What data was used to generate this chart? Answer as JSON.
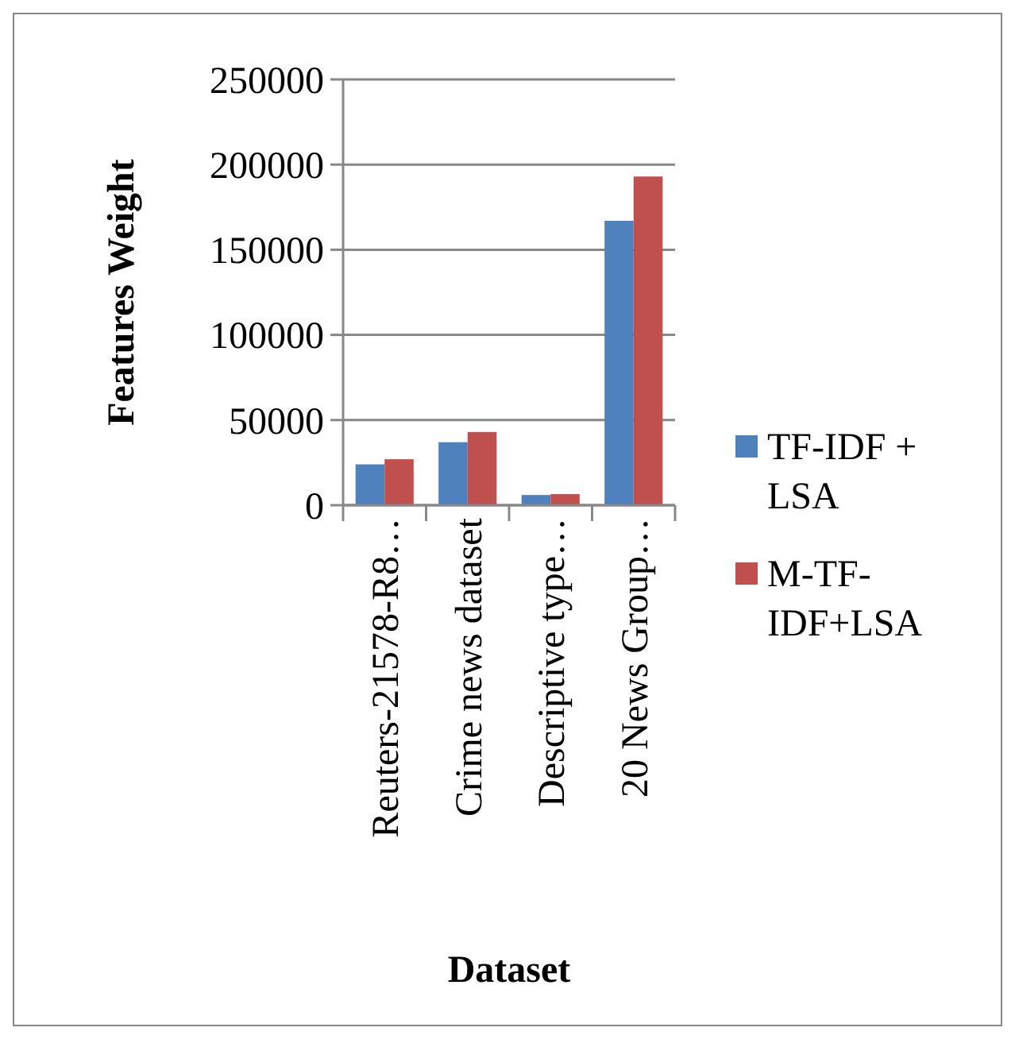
{
  "chart_data": {
    "type": "bar",
    "xlabel": "Dataset",
    "ylabel": "Features Weight",
    "categories": [
      "Reuters-21578-R8…",
      "Crime news dataset",
      "Descriptive type…",
      "20 News Group…"
    ],
    "series": [
      {
        "name": "TF-IDF + LSA",
        "color": "#4f81bd",
        "values": [
          24000,
          37000,
          6000,
          167000
        ]
      },
      {
        "name": "M-TF-IDF+LSA",
        "color": "#c0504d",
        "values": [
          27000,
          43000,
          6500,
          193000
        ]
      }
    ],
    "ylim": [
      0,
      250000
    ],
    "yticks": [
      0,
      50000,
      100000,
      150000,
      200000,
      250000
    ],
    "grid": "y",
    "legend": "right"
  }
}
